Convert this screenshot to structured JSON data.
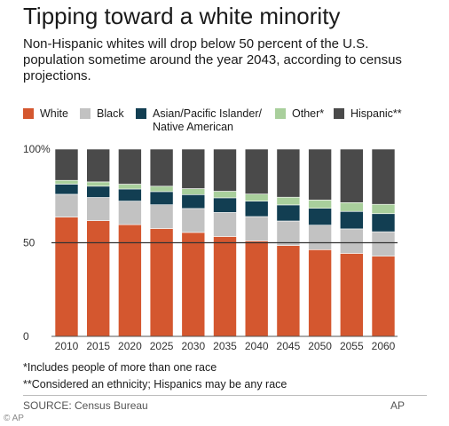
{
  "title": "Tipping toward a white minority",
  "subtitle": "Non-Hispanic whites will drop below 50 percent of the U.S. population sometime around the year 2043, according to census projections.",
  "notes": [
    "*Includes people of more than one race",
    "**Considered an ethnicity; Hispanics may be any race"
  ],
  "source": "SOURCE: Census Bureau",
  "credit": "AP",
  "watermark": "© AP",
  "legend": [
    {
      "label": "White",
      "color": "#d4572f"
    },
    {
      "label": "Black",
      "color": "#c2c2c2"
    },
    {
      "label": "Asian/Pacific Islander/ Native American",
      "color": "#123e52"
    },
    {
      "label": "Other*",
      "color": "#a9cf9c"
    },
    {
      "label": "Hispanic**",
      "color": "#4a4a4a"
    }
  ],
  "chart_data": {
    "type": "bar",
    "stacked": true,
    "categories": [
      "2010",
      "2015",
      "2020",
      "2025",
      "2030",
      "2035",
      "2040",
      "2045",
      "2050",
      "2055",
      "2060"
    ],
    "series": [
      {
        "name": "White",
        "color": "#d4572f",
        "values": [
          63.7,
          61.8,
          59.7,
          57.6,
          55.5,
          53.3,
          51.0,
          48.5,
          46.3,
          44.3,
          42.8
        ]
      },
      {
        "name": "Black",
        "color": "#c2c2c2",
        "values": [
          12.2,
          12.4,
          12.5,
          12.7,
          12.8,
          12.9,
          13.0,
          13.1,
          13.1,
          13.1,
          13.1
        ]
      },
      {
        "name": "Asian/Pacific Islander/ Native American",
        "color": "#123e52",
        "values": [
          5.4,
          6.0,
          6.5,
          7.0,
          7.4,
          7.8,
          8.2,
          8.6,
          9.0,
          9.3,
          9.6
        ]
      },
      {
        "name": "Other*",
        "color": "#a9cf9c",
        "values": [
          2.0,
          2.3,
          2.6,
          2.9,
          3.2,
          3.5,
          3.8,
          4.1,
          4.4,
          4.7,
          5.0
        ]
      },
      {
        "name": "Hispanic**",
        "color": "#4a4a4a",
        "values": [
          16.7,
          17.5,
          18.7,
          19.8,
          21.1,
          22.5,
          24.0,
          25.7,
          27.2,
          28.6,
          29.5
        ]
      }
    ],
    "ylim": [
      0,
      100
    ],
    "yticks": [
      "100%",
      "50",
      "0"
    ],
    "reference_line": 50,
    "grid": false,
    "legend_position": "top"
  }
}
